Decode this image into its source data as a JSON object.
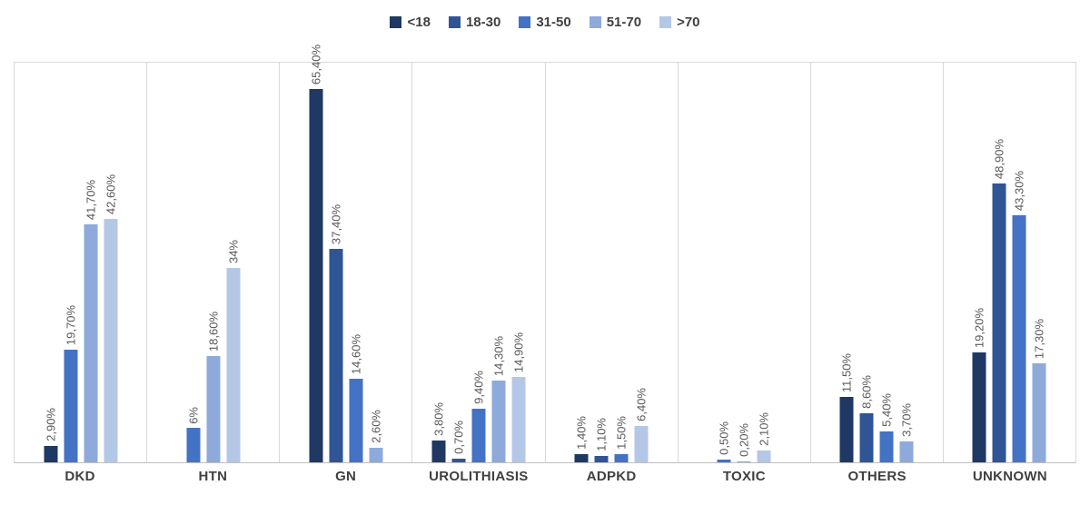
{
  "chart_data": {
    "type": "bar",
    "title": "",
    "categories": [
      "DKD",
      "HTN",
      "GN",
      "UROLITHIASIS",
      "ADPKD",
      "TOXIC",
      "OTHERS",
      "UNKNOWN"
    ],
    "ylim": [
      0,
      70
    ],
    "grid": "vertical category separators only",
    "legend_position": "top-center",
    "value_suffix": "%",
    "series": [
      {
        "name": "<18",
        "color": "#1F3864",
        "values": [
          2.9,
          0,
          65.4,
          3.8,
          1.4,
          0,
          11.5,
          19.2
        ],
        "labels": [
          "2,90%",
          null,
          "65,40%",
          "3,80%",
          "1,40%",
          null,
          "11,50%",
          "19,20%"
        ]
      },
      {
        "name": "18-30",
        "color": "#2F5597",
        "values": [
          0,
          0,
          37.4,
          0.7,
          1.1,
          0,
          8.6,
          48.9
        ],
        "labels": [
          null,
          null,
          "37,40%",
          "0,70%",
          "1,10%",
          null,
          "8,60%",
          "48,90%"
        ]
      },
      {
        "name": "31-50",
        "color": "#4472C4",
        "values": [
          19.7,
          6,
          14.6,
          9.4,
          1.5,
          0.5,
          5.4,
          43.3
        ],
        "labels": [
          "19,70%",
          "6%",
          "14,60%",
          "9,40%",
          "1,50%",
          "0,50%",
          "5,40%",
          "43,30%"
        ]
      },
      {
        "name": "51-70",
        "color": "#8EAADB",
        "values": [
          41.7,
          18.6,
          2.6,
          14.3,
          0,
          0.2,
          3.7,
          17.3
        ],
        "labels": [
          "41,70%",
          "18,60%",
          "2,60%",
          "14,30%",
          null,
          "0,20%",
          "3,70%",
          "17,30%"
        ]
      },
      {
        "name": ">70",
        "color": "#B4C7E7",
        "values": [
          42.6,
          34,
          0,
          14.9,
          6.4,
          2.1,
          0,
          0
        ],
        "labels": [
          "42,60%",
          "34%",
          null,
          "14,90%",
          "6,40%",
          "2,10%",
          null,
          null
        ]
      }
    ],
    "label_color": "#595959",
    "axis_label_color": "#404040",
    "gridline_color": "#D9D9D9"
  }
}
